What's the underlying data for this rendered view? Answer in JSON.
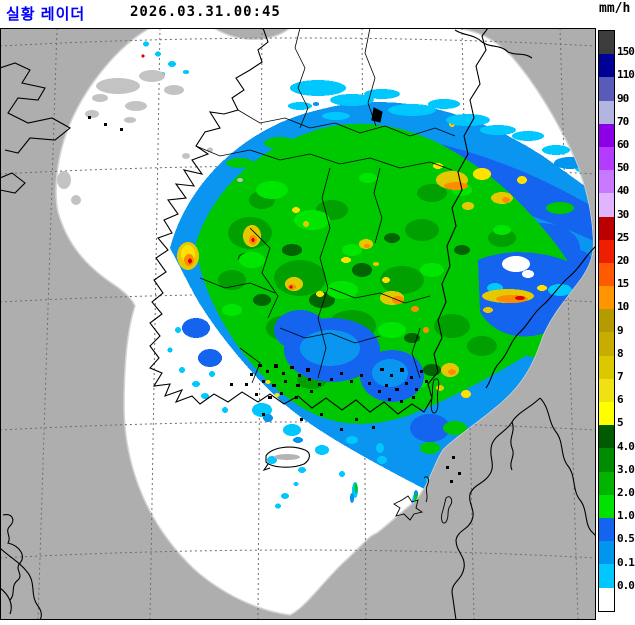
{
  "header": {
    "title": "실황 레이더",
    "title_color": "#0000ff",
    "timestamp": "2026.03.31.00:45"
  },
  "legend": {
    "unit": "mm/h",
    "segments": [
      {
        "color": "#3c3c3c",
        "label": "150"
      },
      {
        "color": "#000096",
        "label": "110"
      },
      {
        "color": "#5a5ab9",
        "label": "90"
      },
      {
        "color": "#b4b4e1",
        "label": "70"
      },
      {
        "color": "#8c00e6",
        "label": "60"
      },
      {
        "color": "#b43cff",
        "label": "50"
      },
      {
        "color": "#c878ff",
        "label": "40"
      },
      {
        "color": "#e1b4ff",
        "label": "30"
      },
      {
        "color": "#bc0000",
        "label": "25"
      },
      {
        "color": "#f01e00",
        "label": "20"
      },
      {
        "color": "#ff5a00",
        "label": "15"
      },
      {
        "color": "#ff9600",
        "label": "10"
      },
      {
        "color": "#b49b00",
        "label": "9"
      },
      {
        "color": "#c8ad00",
        "label": "8"
      },
      {
        "color": "#dcc800",
        "label": "7"
      },
      {
        "color": "#f0e114",
        "label": "6"
      },
      {
        "color": "#ffff00",
        "label": "5"
      },
      {
        "color": "#005a00",
        "label": "4.0"
      },
      {
        "color": "#008c00",
        "label": "3.0"
      },
      {
        "color": "#00b400",
        "label": "2.0"
      },
      {
        "color": "#00e100",
        "label": "1.0"
      },
      {
        "color": "#1464f0",
        "label": "0.5"
      },
      {
        "color": "#0096f0",
        "label": "0.1"
      },
      {
        "color": "#00c8ff",
        "label": "0.0"
      },
      {
        "color": "#ffffff",
        "label": ""
      }
    ]
  },
  "map": {
    "background_color": "#aeaeae",
    "coverage_color": "#ffffff"
  }
}
